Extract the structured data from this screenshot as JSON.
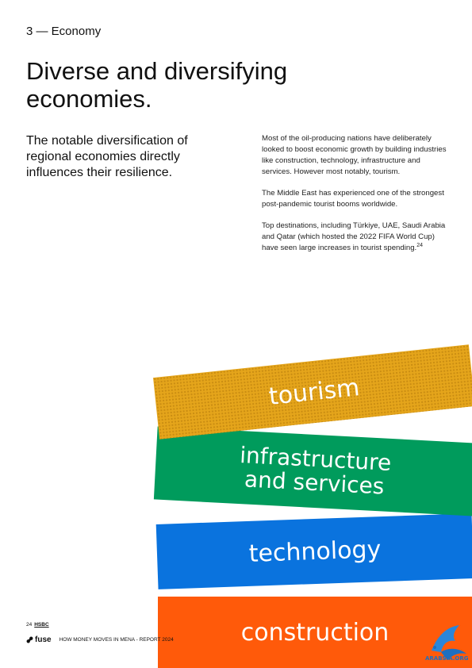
{
  "section": "3 — Economy",
  "headline": "Diverse and diversifying economies.",
  "lede": "The notable diversification of regional economies directly influences their resilience.",
  "body": {
    "p1": "Most of the oil-producing nations have deliberately looked to boost economic growth by building industries like construction, technology, infrastructure and services. However most notably, tourism.",
    "p2": "The Middle East has experienced one of the strongest post-pandemic tourist booms worldwide.",
    "p3": "Top destinations, including Türkiye, UAE, Saudi Arabia and Qatar (which hosted the 2022 FIFA World Cup) have seen large increases in tourist spending.",
    "p3_ref": "24"
  },
  "bands": {
    "tourism": "tourism",
    "infra_line1": "infrastructure",
    "infra_line2": "and services",
    "technology": "technology",
    "construction": "construction"
  },
  "colors": {
    "tourism": "#e5a51b",
    "infrastructure": "#009b5c",
    "technology": "#0a73de",
    "construction": "#ff5a0a"
  },
  "footer": {
    "page_number": "24",
    "partner": "HSBC",
    "logo": "fuse",
    "report": "HOW MONEY MOVES IN MENA - REPORT 2024"
  },
  "watermark": "ARABSIA.ORG",
  "icons": [
    "fuse-logo-icon",
    "watermark-bird-icon"
  ]
}
